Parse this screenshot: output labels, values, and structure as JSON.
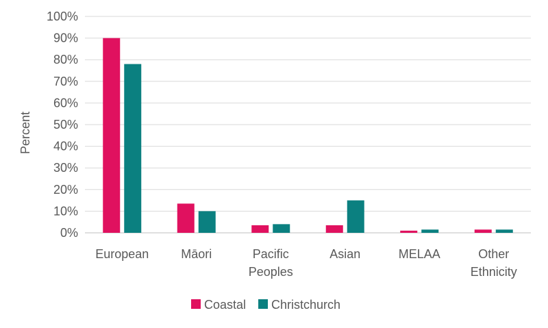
{
  "chart_data": {
    "type": "bar",
    "ylabel": "Percent",
    "ylim": [
      0,
      100
    ],
    "y_ticks": [
      "0%",
      "10%",
      "20%",
      "30%",
      "40%",
      "50%",
      "60%",
      "70%",
      "80%",
      "90%",
      "100%"
    ],
    "grid": true,
    "legend_position": "bottom",
    "categories": [
      [
        "European"
      ],
      [
        "Māori"
      ],
      [
        "Pacific",
        "Peoples"
      ],
      [
        "Asian"
      ],
      [
        "MELAA"
      ],
      [
        "Other",
        "Ethnicity"
      ]
    ],
    "series": [
      {
        "name": "Coastal",
        "color": "#E0115F",
        "values": [
          90,
          13.5,
          3.5,
          3.5,
          1,
          1.5
        ]
      },
      {
        "name": "Christchurch",
        "color": "#0B8080",
        "values": [
          78,
          10,
          4,
          15,
          1.5,
          1.5
        ]
      }
    ]
  }
}
